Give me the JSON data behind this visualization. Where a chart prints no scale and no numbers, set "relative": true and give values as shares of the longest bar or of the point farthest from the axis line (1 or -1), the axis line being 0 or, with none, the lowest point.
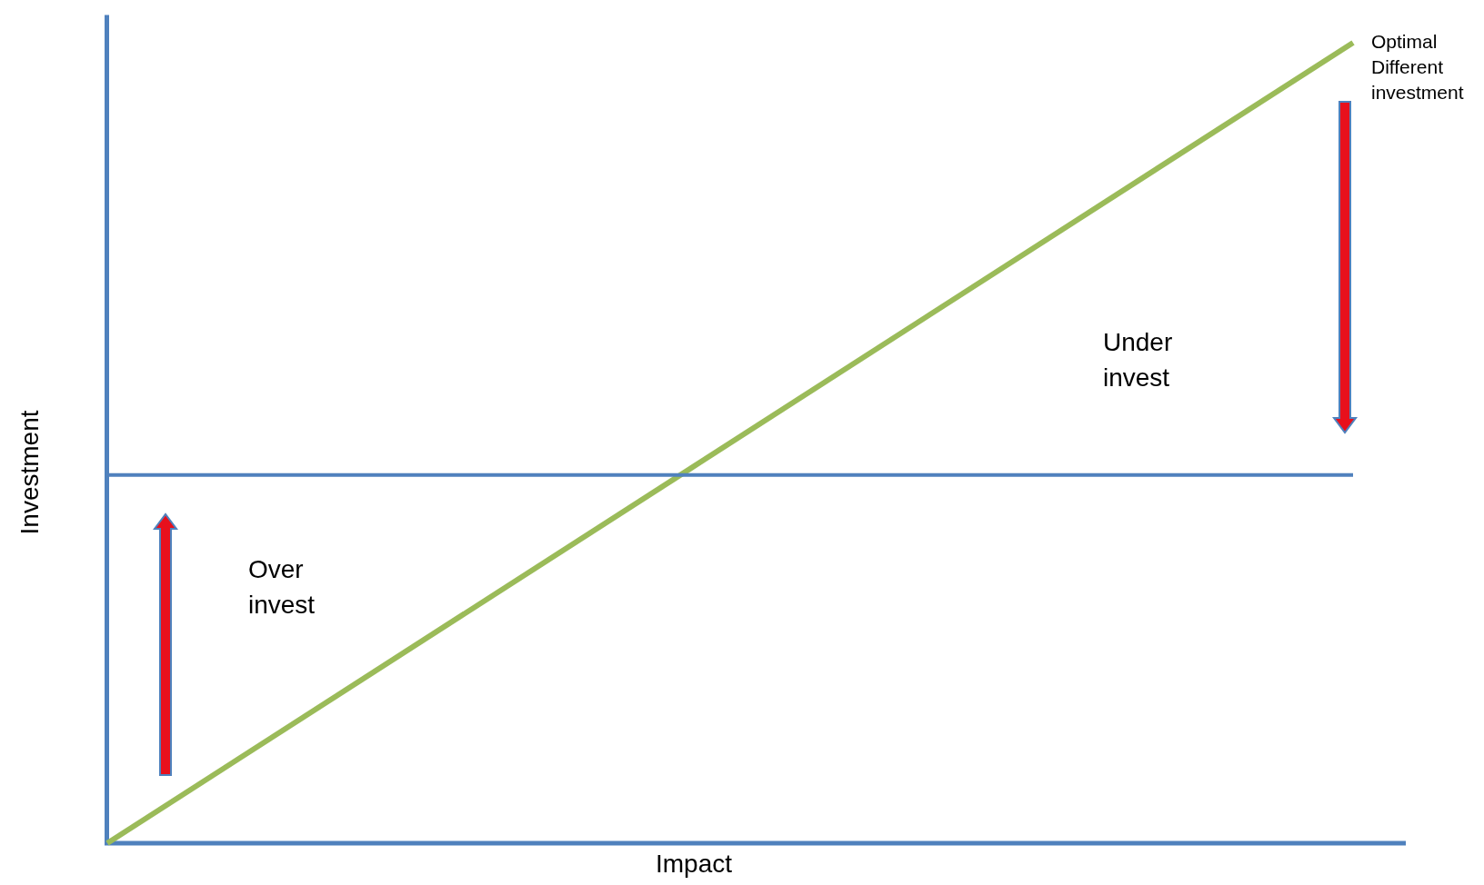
{
  "chart_data": {
    "type": "line",
    "relative": true,
    "xlabel": "Impact",
    "ylabel": "Investment",
    "categories": [
      null,
      null
    ],
    "series": [
      {
        "name": "Optimal Different investment",
        "color": "#9bbb59",
        "values": [
          0,
          1
        ]
      },
      {
        "color": "#4f81bd",
        "values": [
          0.46,
          0.46
        ]
      }
    ],
    "ref_lines": [
      {
        "axis": "y",
        "value": 0,
        "color": "#4f81bd"
      }
    ],
    "annotations": [
      "Over invest",
      "Under invest"
    ],
    "legend": false,
    "grid": false,
    "marker": "none",
    "line_style": "solid"
  }
}
